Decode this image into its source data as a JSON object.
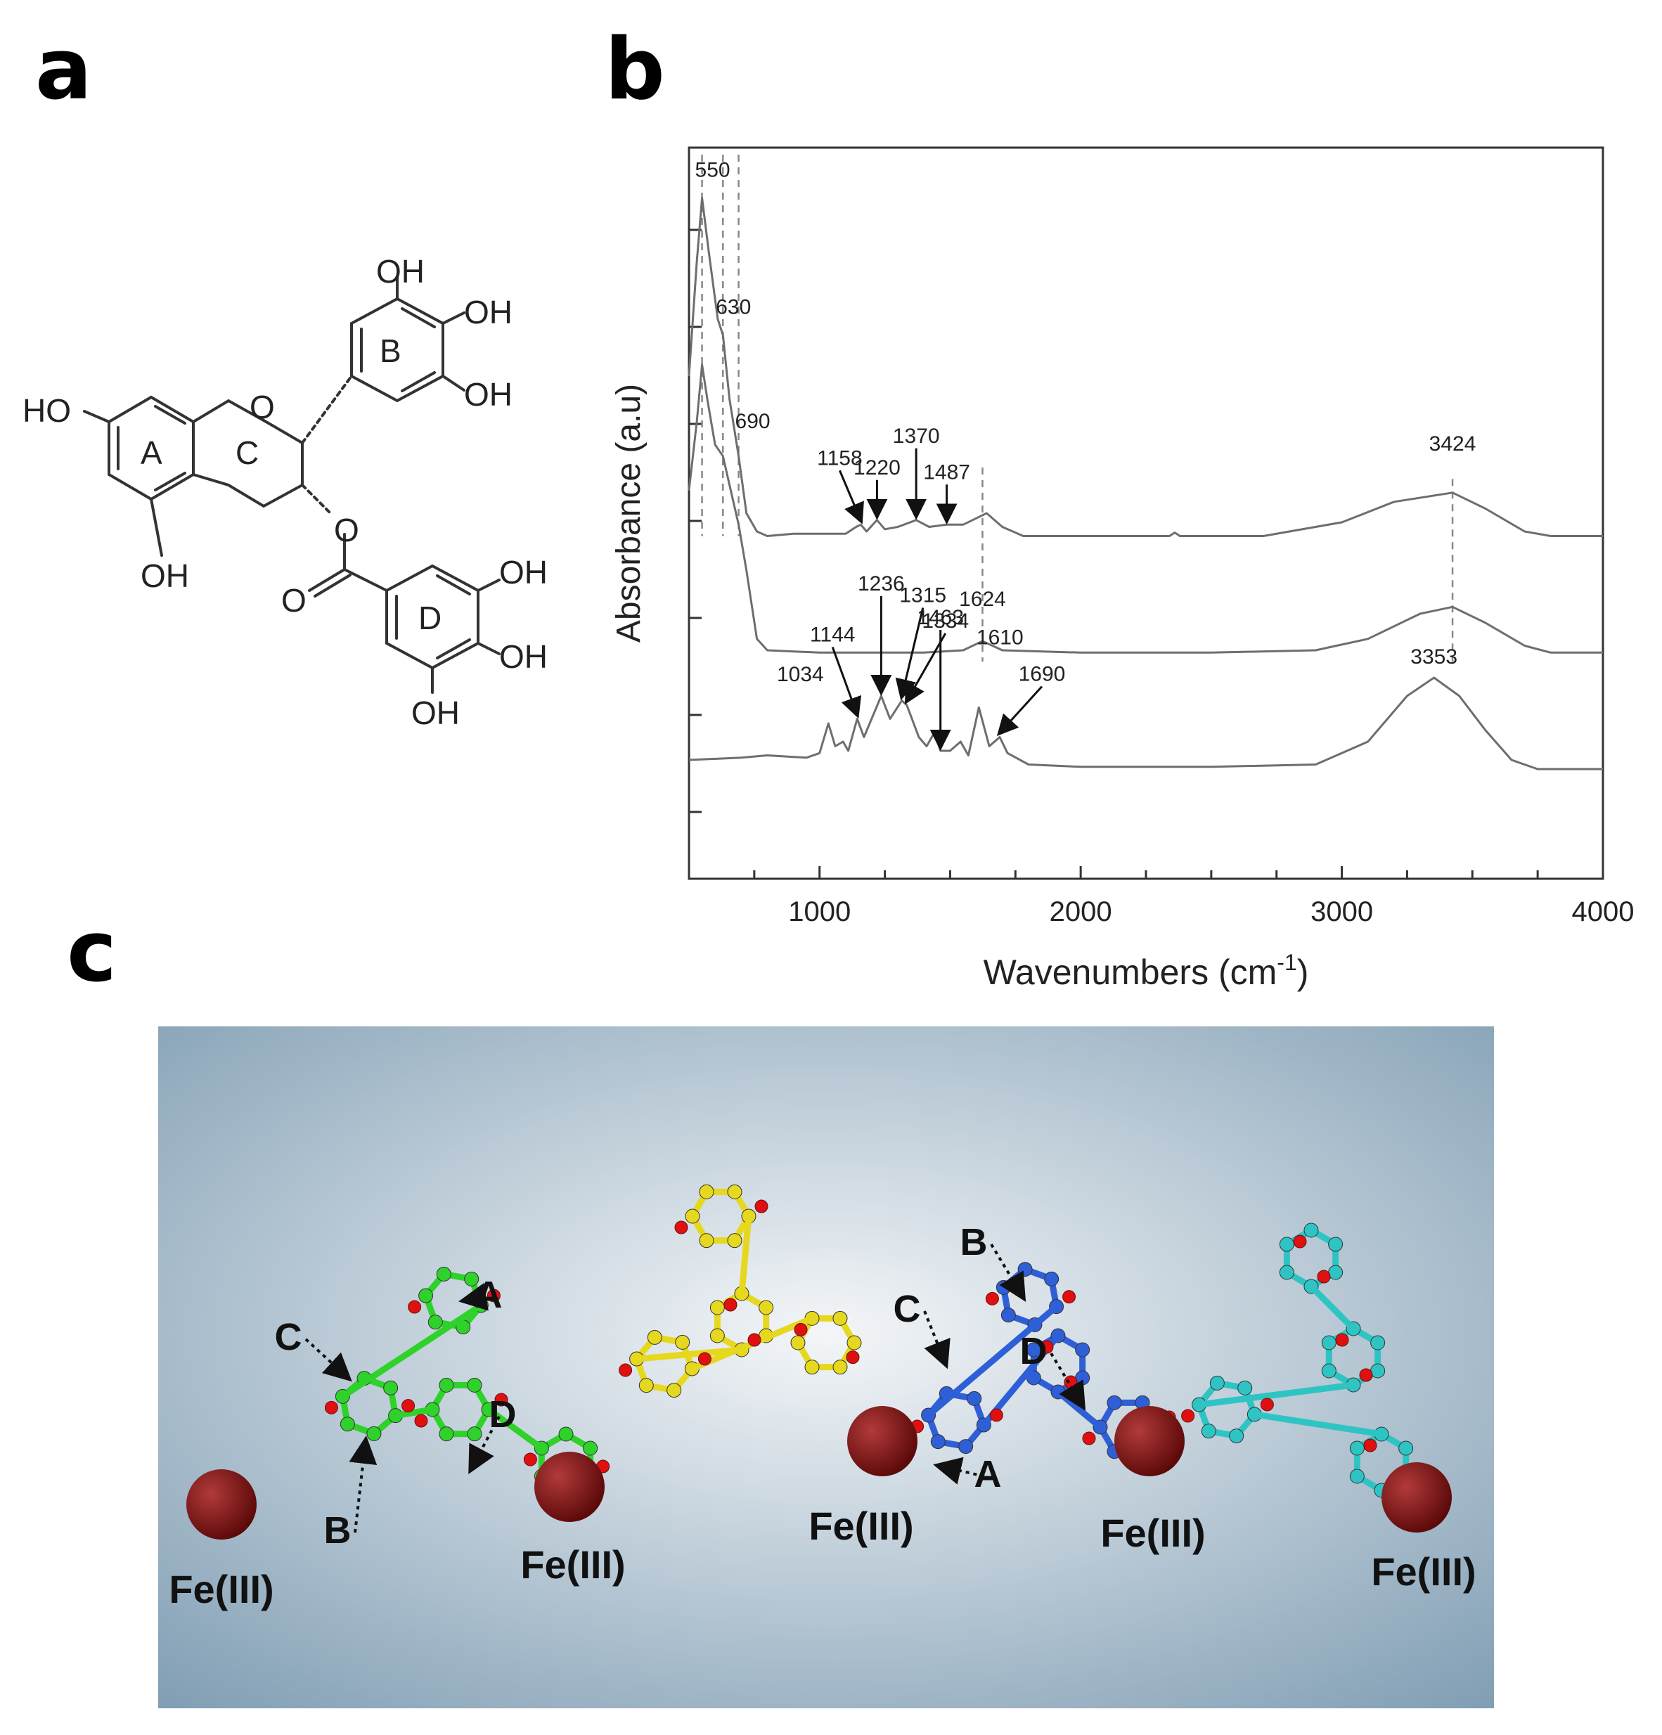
{
  "panels": {
    "a": "a",
    "b": "b",
    "c": "c"
  },
  "structure": {
    "rings": [
      "A",
      "B",
      "C",
      "D"
    ],
    "oh_labels": {
      "ho_a": "HO",
      "oh_a": "OH",
      "oh_b1": "OH",
      "oh_b2": "OH",
      "oh_b3": "OH",
      "oh_d1": "OH",
      "oh_d2": "OH",
      "oh_d3": "OH"
    },
    "oxygens": {
      "ring_o": "O",
      "ester_o": "O",
      "carbonyl_o": "O"
    }
  },
  "chart_data": {
    "type": "line",
    "title": "",
    "xlabel": "Wavenumbers (cm",
    "xlabel_sup": "-1",
    "xlabel_close": ")",
    "ylabel": "Absorbance (a.u)",
    "xlim": [
      500,
      4000
    ],
    "x_ticks": [
      1000,
      2000,
      3000,
      4000
    ],
    "grid": false,
    "legend": "none",
    "line_color": "#6e6e6e",
    "series": [
      {
        "peaks": [
          550,
          630,
          690,
          1158,
          1220,
          1370,
          1487,
          3424
        ],
        "points": [
          [
            500,
            1.7
          ],
          [
            530,
            2.2
          ],
          [
            550,
            2.48
          ],
          [
            575,
            2.25
          ],
          [
            610,
            1.95
          ],
          [
            630,
            1.88
          ],
          [
            655,
            1.6
          ],
          [
            690,
            1.35
          ],
          [
            720,
            1.1
          ],
          [
            760,
            1.02
          ],
          [
            800,
            1.0
          ],
          [
            900,
            1.01
          ],
          [
            1000,
            1.01
          ],
          [
            1100,
            1.01
          ],
          [
            1140,
            1.04
          ],
          [
            1158,
            1.05
          ],
          [
            1180,
            1.02
          ],
          [
            1220,
            1.07
          ],
          [
            1250,
            1.03
          ],
          [
            1300,
            1.04
          ],
          [
            1370,
            1.07
          ],
          [
            1420,
            1.04
          ],
          [
            1487,
            1.05
          ],
          [
            1550,
            1.05
          ],
          [
            1640,
            1.1
          ],
          [
            1700,
            1.04
          ],
          [
            1780,
            1.0
          ],
          [
            2000,
            1.0
          ],
          [
            2340,
            1.0
          ],
          [
            2360,
            1.015
          ],
          [
            2380,
            1.0
          ],
          [
            2700,
            1.0
          ],
          [
            3000,
            1.06
          ],
          [
            3200,
            1.15
          ],
          [
            3424,
            1.19
          ],
          [
            3550,
            1.12
          ],
          [
            3700,
            1.02
          ],
          [
            3800,
            1.0
          ],
          [
            4000,
            1.0
          ]
        ]
      },
      {
        "peaks": [
          1624
        ],
        "points": [
          [
            500,
            1.2
          ],
          [
            530,
            1.5
          ],
          [
            550,
            1.75
          ],
          [
            570,
            1.6
          ],
          [
            600,
            1.4
          ],
          [
            630,
            1.35
          ],
          [
            660,
            1.2
          ],
          [
            690,
            1.05
          ],
          [
            720,
            0.85
          ],
          [
            760,
            0.55
          ],
          [
            800,
            0.5
          ],
          [
            1000,
            0.49
          ],
          [
            1200,
            0.49
          ],
          [
            1400,
            0.49
          ],
          [
            1550,
            0.5
          ],
          [
            1624,
            0.54
          ],
          [
            1700,
            0.5
          ],
          [
            2000,
            0.49
          ],
          [
            2500,
            0.49
          ],
          [
            2900,
            0.5
          ],
          [
            3100,
            0.55
          ],
          [
            3300,
            0.66
          ],
          [
            3424,
            0.69
          ],
          [
            3550,
            0.62
          ],
          [
            3700,
            0.52
          ],
          [
            3800,
            0.49
          ],
          [
            4000,
            0.49
          ]
        ]
      },
      {
        "peaks": [
          1034,
          1144,
          1236,
          1315,
          1334,
          1463,
          1610,
          1690,
          3353
        ],
        "points": [
          [
            500,
            0.02
          ],
          [
            700,
            0.03
          ],
          [
            800,
            0.04
          ],
          [
            950,
            0.03
          ],
          [
            1000,
            0.05
          ],
          [
            1034,
            0.18
          ],
          [
            1060,
            0.08
          ],
          [
            1090,
            0.1
          ],
          [
            1110,
            0.06
          ],
          [
            1144,
            0.2
          ],
          [
            1170,
            0.12
          ],
          [
            1236,
            0.3
          ],
          [
            1270,
            0.2
          ],
          [
            1315,
            0.28
          ],
          [
            1334,
            0.26
          ],
          [
            1380,
            0.12
          ],
          [
            1410,
            0.08
          ],
          [
            1440,
            0.14
          ],
          [
            1463,
            0.06
          ],
          [
            1500,
            0.06
          ],
          [
            1540,
            0.1
          ],
          [
            1570,
            0.04
          ],
          [
            1610,
            0.25
          ],
          [
            1650,
            0.08
          ],
          [
            1690,
            0.12
          ],
          [
            1720,
            0.05
          ],
          [
            1800,
            0.0
          ],
          [
            2000,
            -0.01
          ],
          [
            2500,
            -0.01
          ],
          [
            2900,
            0.0
          ],
          [
            3100,
            0.1
          ],
          [
            3250,
            0.3
          ],
          [
            3353,
            0.38
          ],
          [
            3450,
            0.3
          ],
          [
            3550,
            0.15
          ],
          [
            3650,
            0.02
          ],
          [
            3750,
            -0.02
          ],
          [
            4000,
            -0.02
          ]
        ]
      }
    ],
    "annotations": [
      {
        "label": "550",
        "x": 550,
        "series": 0
      },
      {
        "label": "630",
        "x": 630,
        "series": 0
      },
      {
        "label": "690",
        "x": 690,
        "series": 0
      },
      {
        "label": "1158",
        "x": 1158,
        "series": 0
      },
      {
        "label": "1220",
        "x": 1220,
        "series": 0
      },
      {
        "label": "1370",
        "x": 1370,
        "series": 0
      },
      {
        "label": "1487",
        "x": 1487,
        "series": 0
      },
      {
        "label": "3424",
        "x": 3424,
        "series": 0
      },
      {
        "label": "1624",
        "x": 1624,
        "series": 1
      },
      {
        "label": "1034",
        "x": 1034,
        "series": 2
      },
      {
        "label": "1144",
        "x": 1144,
        "series": 2
      },
      {
        "label": "1236",
        "x": 1236,
        "series": 2
      },
      {
        "label": "1315",
        "x": 1315,
        "series": 2
      },
      {
        "label": "1334",
        "x": 1334,
        "series": 2
      },
      {
        "label": "1463",
        "x": 1463,
        "series": 2
      },
      {
        "label": "1610",
        "x": 1610,
        "series": 2
      },
      {
        "label": "1690",
        "x": 1690,
        "series": 2
      },
      {
        "label": "3353",
        "x": 3353,
        "series": 2
      }
    ],
    "dashed_guides": [
      550,
      630,
      690,
      1624,
      3424
    ]
  },
  "model": {
    "fe_label": "Fe(III)",
    "ring_labels": [
      "A",
      "B",
      "C",
      "D"
    ],
    "molecule_colors": [
      "#2fd22a",
      "#e6d81e",
      "#2f5fd6",
      "#2fc4c4"
    ],
    "oxygen_color": "#e01010",
    "fe_color": "#7a1010",
    "background_center": "#f4f6f8",
    "background_edge": "#7f9db3"
  }
}
